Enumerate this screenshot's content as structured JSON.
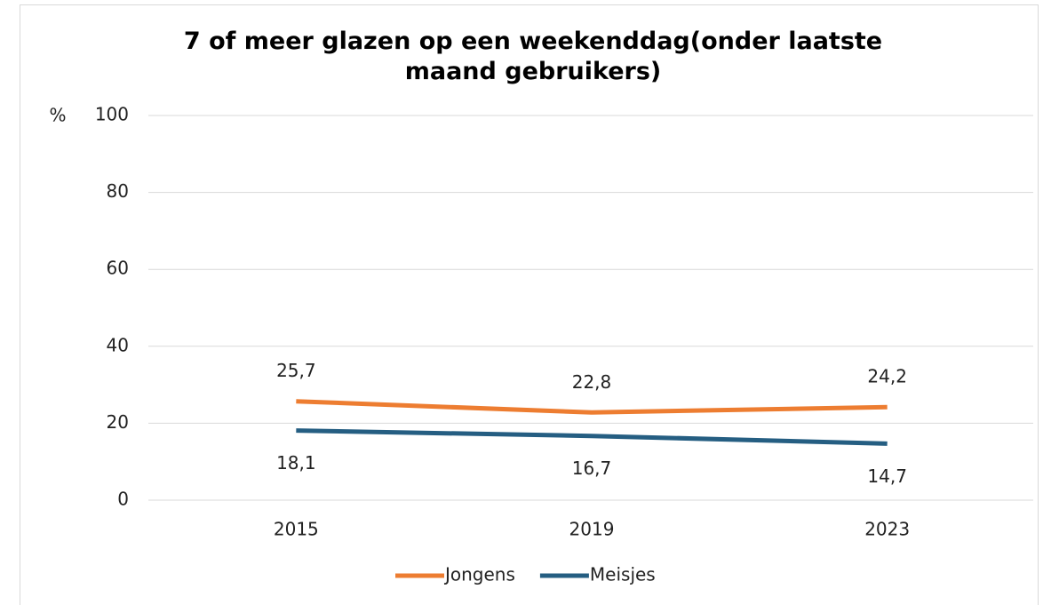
{
  "chart_data": {
    "type": "line",
    "title": "7 of meer glazen op een weekenddag(onder laatste maand gebruikers)",
    "y_label": "%",
    "categories": [
      "2015",
      "2019",
      "2023"
    ],
    "series": [
      {
        "name": "Jongens",
        "color": "#ed7d31",
        "values": [
          25.7,
          22.8,
          24.2
        ],
        "value_labels": [
          "25,7",
          "22,8",
          "24,2"
        ]
      },
      {
        "name": "Meisjes",
        "color": "#255e82",
        "values": [
          18.1,
          16.7,
          14.7
        ],
        "value_labels": [
          "18,1",
          "16,7",
          "14,7"
        ]
      }
    ],
    "ylim": [
      0,
      100
    ],
    "yticks": [
      0,
      20,
      40,
      60,
      80,
      100
    ],
    "grid": true,
    "legend": "bottom"
  }
}
